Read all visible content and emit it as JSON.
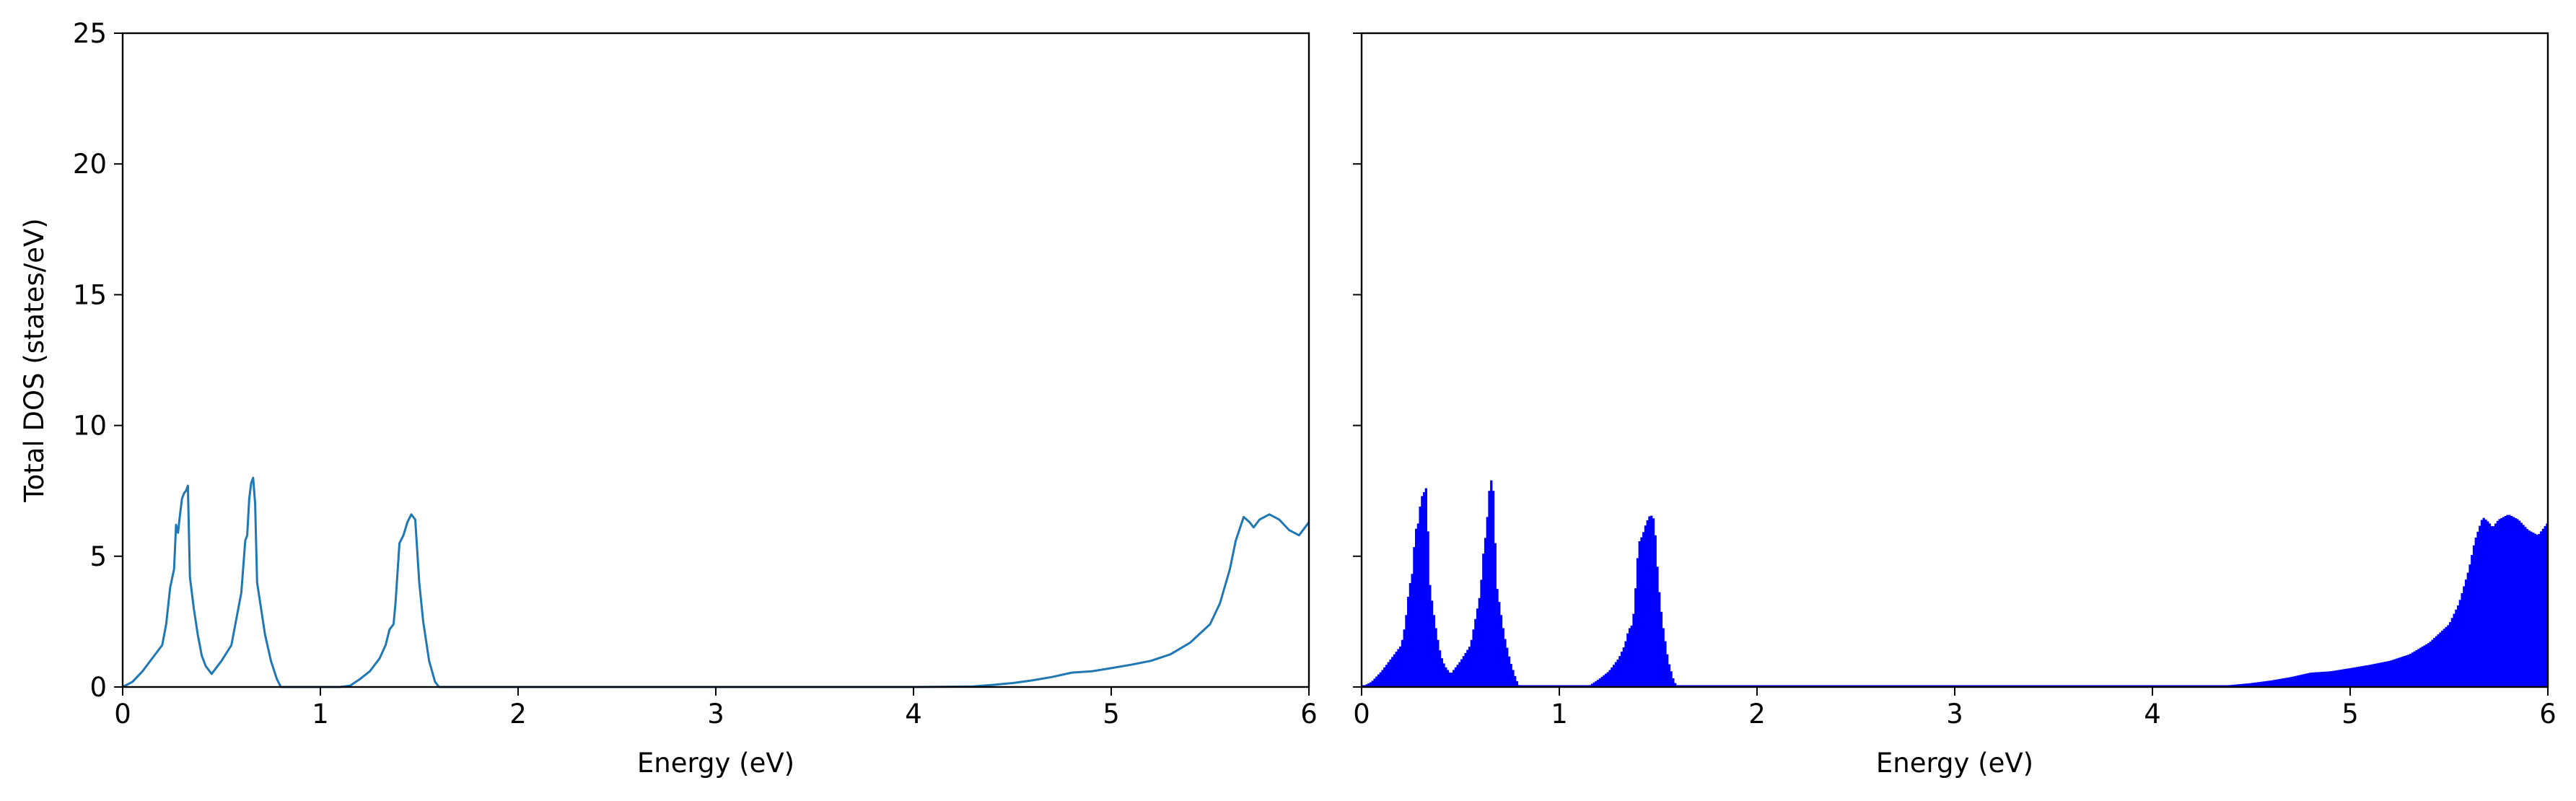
{
  "chart_data": [
    {
      "type": "line",
      "xlabel": "Energy (eV)",
      "ylabel": "Total DOS (states/eV)",
      "xlim": [
        0,
        6
      ],
      "ylim": [
        0,
        25
      ],
      "x_ticks": [
        "0",
        "1",
        "2",
        "3",
        "4",
        "5",
        "6"
      ],
      "y_ticks": [
        "0",
        "5",
        "10",
        "15",
        "20",
        "25"
      ],
      "grid": false,
      "color": "#1f77b4",
      "series": [
        {
          "x": [
            0.0,
            0.05,
            0.1,
            0.15,
            0.2,
            0.22,
            0.24,
            0.26,
            0.27,
            0.28,
            0.29,
            0.3,
            0.31,
            0.32,
            0.33,
            0.34,
            0.36,
            0.38,
            0.4,
            0.42,
            0.45,
            0.5,
            0.55,
            0.58,
            0.6,
            0.62,
            0.63,
            0.64,
            0.65,
            0.66,
            0.67,
            0.68,
            0.7,
            0.72,
            0.75,
            0.78,
            0.8,
            0.85,
            1.0,
            1.1,
            1.15,
            1.2,
            1.25,
            1.3,
            1.33,
            1.35,
            1.37,
            1.38,
            1.4,
            1.42,
            1.44,
            1.46,
            1.48,
            1.5,
            1.52,
            1.55,
            1.58,
            1.6,
            2.0,
            3.0,
            4.0,
            4.3,
            4.4,
            4.5,
            4.6,
            4.7,
            4.8,
            4.9,
            5.0,
            5.1,
            5.2,
            5.3,
            5.4,
            5.5,
            5.55,
            5.6,
            5.63,
            5.67,
            5.7,
            5.72,
            5.75,
            5.8,
            5.85,
            5.9,
            5.95,
            6.0
          ],
          "y": [
            0.0,
            0.2,
            0.6,
            1.1,
            1.6,
            2.4,
            3.8,
            4.5,
            6.2,
            5.9,
            6.6,
            7.2,
            7.4,
            7.5,
            7.7,
            4.2,
            3.0,
            2.0,
            1.2,
            0.8,
            0.5,
            1.0,
            1.6,
            2.8,
            3.6,
            5.6,
            5.8,
            7.2,
            7.8,
            8.0,
            7.0,
            4.0,
            3.0,
            2.0,
            1.0,
            0.3,
            0.0,
            0.0,
            0.0,
            0.0,
            0.05,
            0.3,
            0.6,
            1.1,
            1.6,
            2.2,
            2.4,
            3.2,
            5.5,
            5.8,
            6.3,
            6.6,
            6.4,
            4.0,
            2.5,
            1.0,
            0.2,
            0.0,
            0.0,
            0.0,
            0.0,
            0.02,
            0.08,
            0.15,
            0.25,
            0.38,
            0.55,
            0.6,
            0.72,
            0.85,
            1.0,
            1.25,
            1.7,
            2.4,
            3.2,
            4.5,
            5.6,
            6.5,
            6.3,
            6.1,
            6.4,
            6.6,
            6.4,
            6.0,
            5.8,
            6.3
          ]
        }
      ]
    },
    {
      "type": "bar",
      "xlabel": "Energy (eV)",
      "xlim": [
        0,
        6
      ],
      "ylim": [
        0,
        25
      ],
      "x_ticks": [
        "0",
        "1",
        "2",
        "3",
        "4",
        "5",
        "6"
      ],
      "y_ticks_shared": true,
      "grid": false,
      "color": "#0000ff",
      "note": "same DOS profile drawn as dense filled bars",
      "series": [
        {
          "x": [
            0.0,
            0.05,
            0.1,
            0.15,
            0.2,
            0.22,
            0.24,
            0.26,
            0.27,
            0.28,
            0.29,
            0.3,
            0.31,
            0.32,
            0.33,
            0.34,
            0.36,
            0.38,
            0.4,
            0.42,
            0.45,
            0.5,
            0.55,
            0.58,
            0.6,
            0.62,
            0.63,
            0.64,
            0.65,
            0.66,
            0.67,
            0.68,
            0.7,
            0.72,
            0.75,
            0.78,
            0.8,
            0.85,
            1.0,
            1.1,
            1.15,
            1.2,
            1.25,
            1.3,
            1.33,
            1.35,
            1.37,
            1.38,
            1.4,
            1.42,
            1.44,
            1.46,
            1.48,
            1.5,
            1.52,
            1.55,
            1.58,
            1.6,
            2.0,
            3.0,
            4.0,
            4.3,
            4.4,
            4.5,
            4.6,
            4.7,
            4.8,
            4.9,
            5.0,
            5.1,
            5.2,
            5.3,
            5.4,
            5.5,
            5.55,
            5.6,
            5.63,
            5.67,
            5.7,
            5.72,
            5.75,
            5.8,
            5.85,
            5.9,
            5.95,
            6.0
          ],
          "y": [
            0.0,
            0.2,
            0.6,
            1.1,
            1.6,
            2.4,
            3.8,
            4.5,
            6.2,
            5.9,
            6.6,
            7.2,
            7.4,
            7.5,
            7.7,
            4.2,
            3.0,
            2.0,
            1.2,
            0.8,
            0.5,
            1.0,
            1.6,
            2.8,
            3.6,
            5.6,
            5.8,
            7.2,
            7.8,
            8.0,
            7.0,
            4.0,
            3.0,
            2.0,
            1.0,
            0.3,
            0.0,
            0.0,
            0.0,
            0.0,
            0.05,
            0.3,
            0.6,
            1.1,
            1.6,
            2.2,
            2.4,
            3.2,
            5.5,
            5.8,
            6.3,
            6.6,
            6.4,
            4.0,
            2.5,
            1.0,
            0.2,
            0.0,
            0.0,
            0.0,
            0.0,
            0.02,
            0.08,
            0.15,
            0.25,
            0.38,
            0.55,
            0.6,
            0.72,
            0.85,
            1.0,
            1.25,
            1.7,
            2.4,
            3.2,
            4.5,
            5.6,
            6.5,
            6.3,
            6.1,
            6.4,
            6.6,
            6.4,
            6.0,
            5.8,
            6.3
          ]
        }
      ]
    }
  ]
}
